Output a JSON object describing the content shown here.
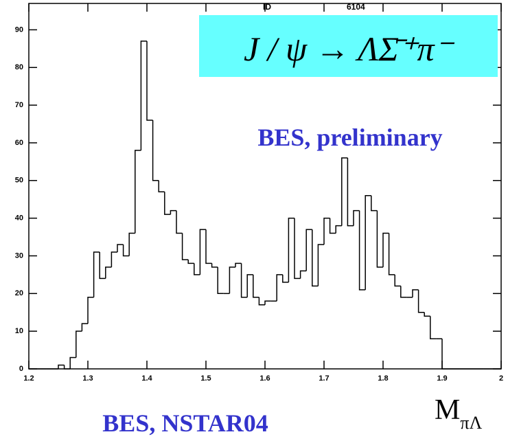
{
  "chart_data": {
    "type": "histogram",
    "annotation": "J / ψ → ΛΣ̄⁺π⁻",
    "subtitle": "BES, preliminary",
    "footer": "BES, NSTAR04",
    "xlabel": "M",
    "xlabel_subscript": "πΛ",
    "stats": {
      "id_label": "ID",
      "id": "6104"
    },
    "color": "#000000",
    "bins": [
      1.2,
      1.21,
      1.22,
      1.23,
      1.24,
      1.25,
      1.26,
      1.27,
      1.28,
      1.29,
      1.3,
      1.31,
      1.32,
      1.33,
      1.34,
      1.35,
      1.36,
      1.37,
      1.38,
      1.39,
      1.4,
      1.41,
      1.42,
      1.43,
      1.44,
      1.45,
      1.46,
      1.47,
      1.48,
      1.49,
      1.5,
      1.51,
      1.52,
      1.53,
      1.54,
      1.55,
      1.56,
      1.57,
      1.58,
      1.59,
      1.6,
      1.61,
      1.62,
      1.63,
      1.64,
      1.65,
      1.66,
      1.67,
      1.68,
      1.69,
      1.7,
      1.71,
      1.72,
      1.73,
      1.74,
      1.75,
      1.76,
      1.77,
      1.78,
      1.79,
      1.8,
      1.81,
      1.82,
      1.83,
      1.84,
      1.85,
      1.86,
      1.87,
      1.88,
      1.89,
      1.9,
      1.91,
      1.92,
      1.93,
      1.94,
      1.95,
      1.96,
      1.97,
      1.98,
      1.99,
      2.0
    ],
    "counts": [
      0,
      0,
      0,
      0,
      0,
      1,
      0,
      3,
      10,
      12,
      19,
      31,
      24,
      27,
      31,
      33,
      30,
      36,
      58,
      87,
      66,
      50,
      47,
      41,
      42,
      36,
      29,
      28,
      25,
      37,
      28,
      27,
      20,
      20,
      27,
      28,
      19,
      25,
      19,
      17,
      18,
      18,
      25,
      23,
      40,
      24,
      26,
      37,
      22,
      33,
      40,
      36,
      38,
      56,
      38,
      42,
      21,
      46,
      42,
      27,
      36,
      25,
      22,
      19,
      19,
      21,
      15,
      14,
      8,
      8,
      0,
      0,
      0,
      0,
      0,
      0,
      0,
      0,
      0,
      0
    ],
    "xlim": [
      1.2,
      2
    ],
    "xticks": [
      1.2,
      1.3,
      1.4,
      1.5,
      1.6,
      1.7,
      1.8,
      1.9,
      2
    ],
    "ylim": [
      0,
      97
    ],
    "yticks": [
      0,
      10,
      20,
      30,
      40,
      50,
      60,
      70,
      80,
      90
    ],
    "annotation_box_color": "#66ffff",
    "text_color": "#3333cc"
  }
}
